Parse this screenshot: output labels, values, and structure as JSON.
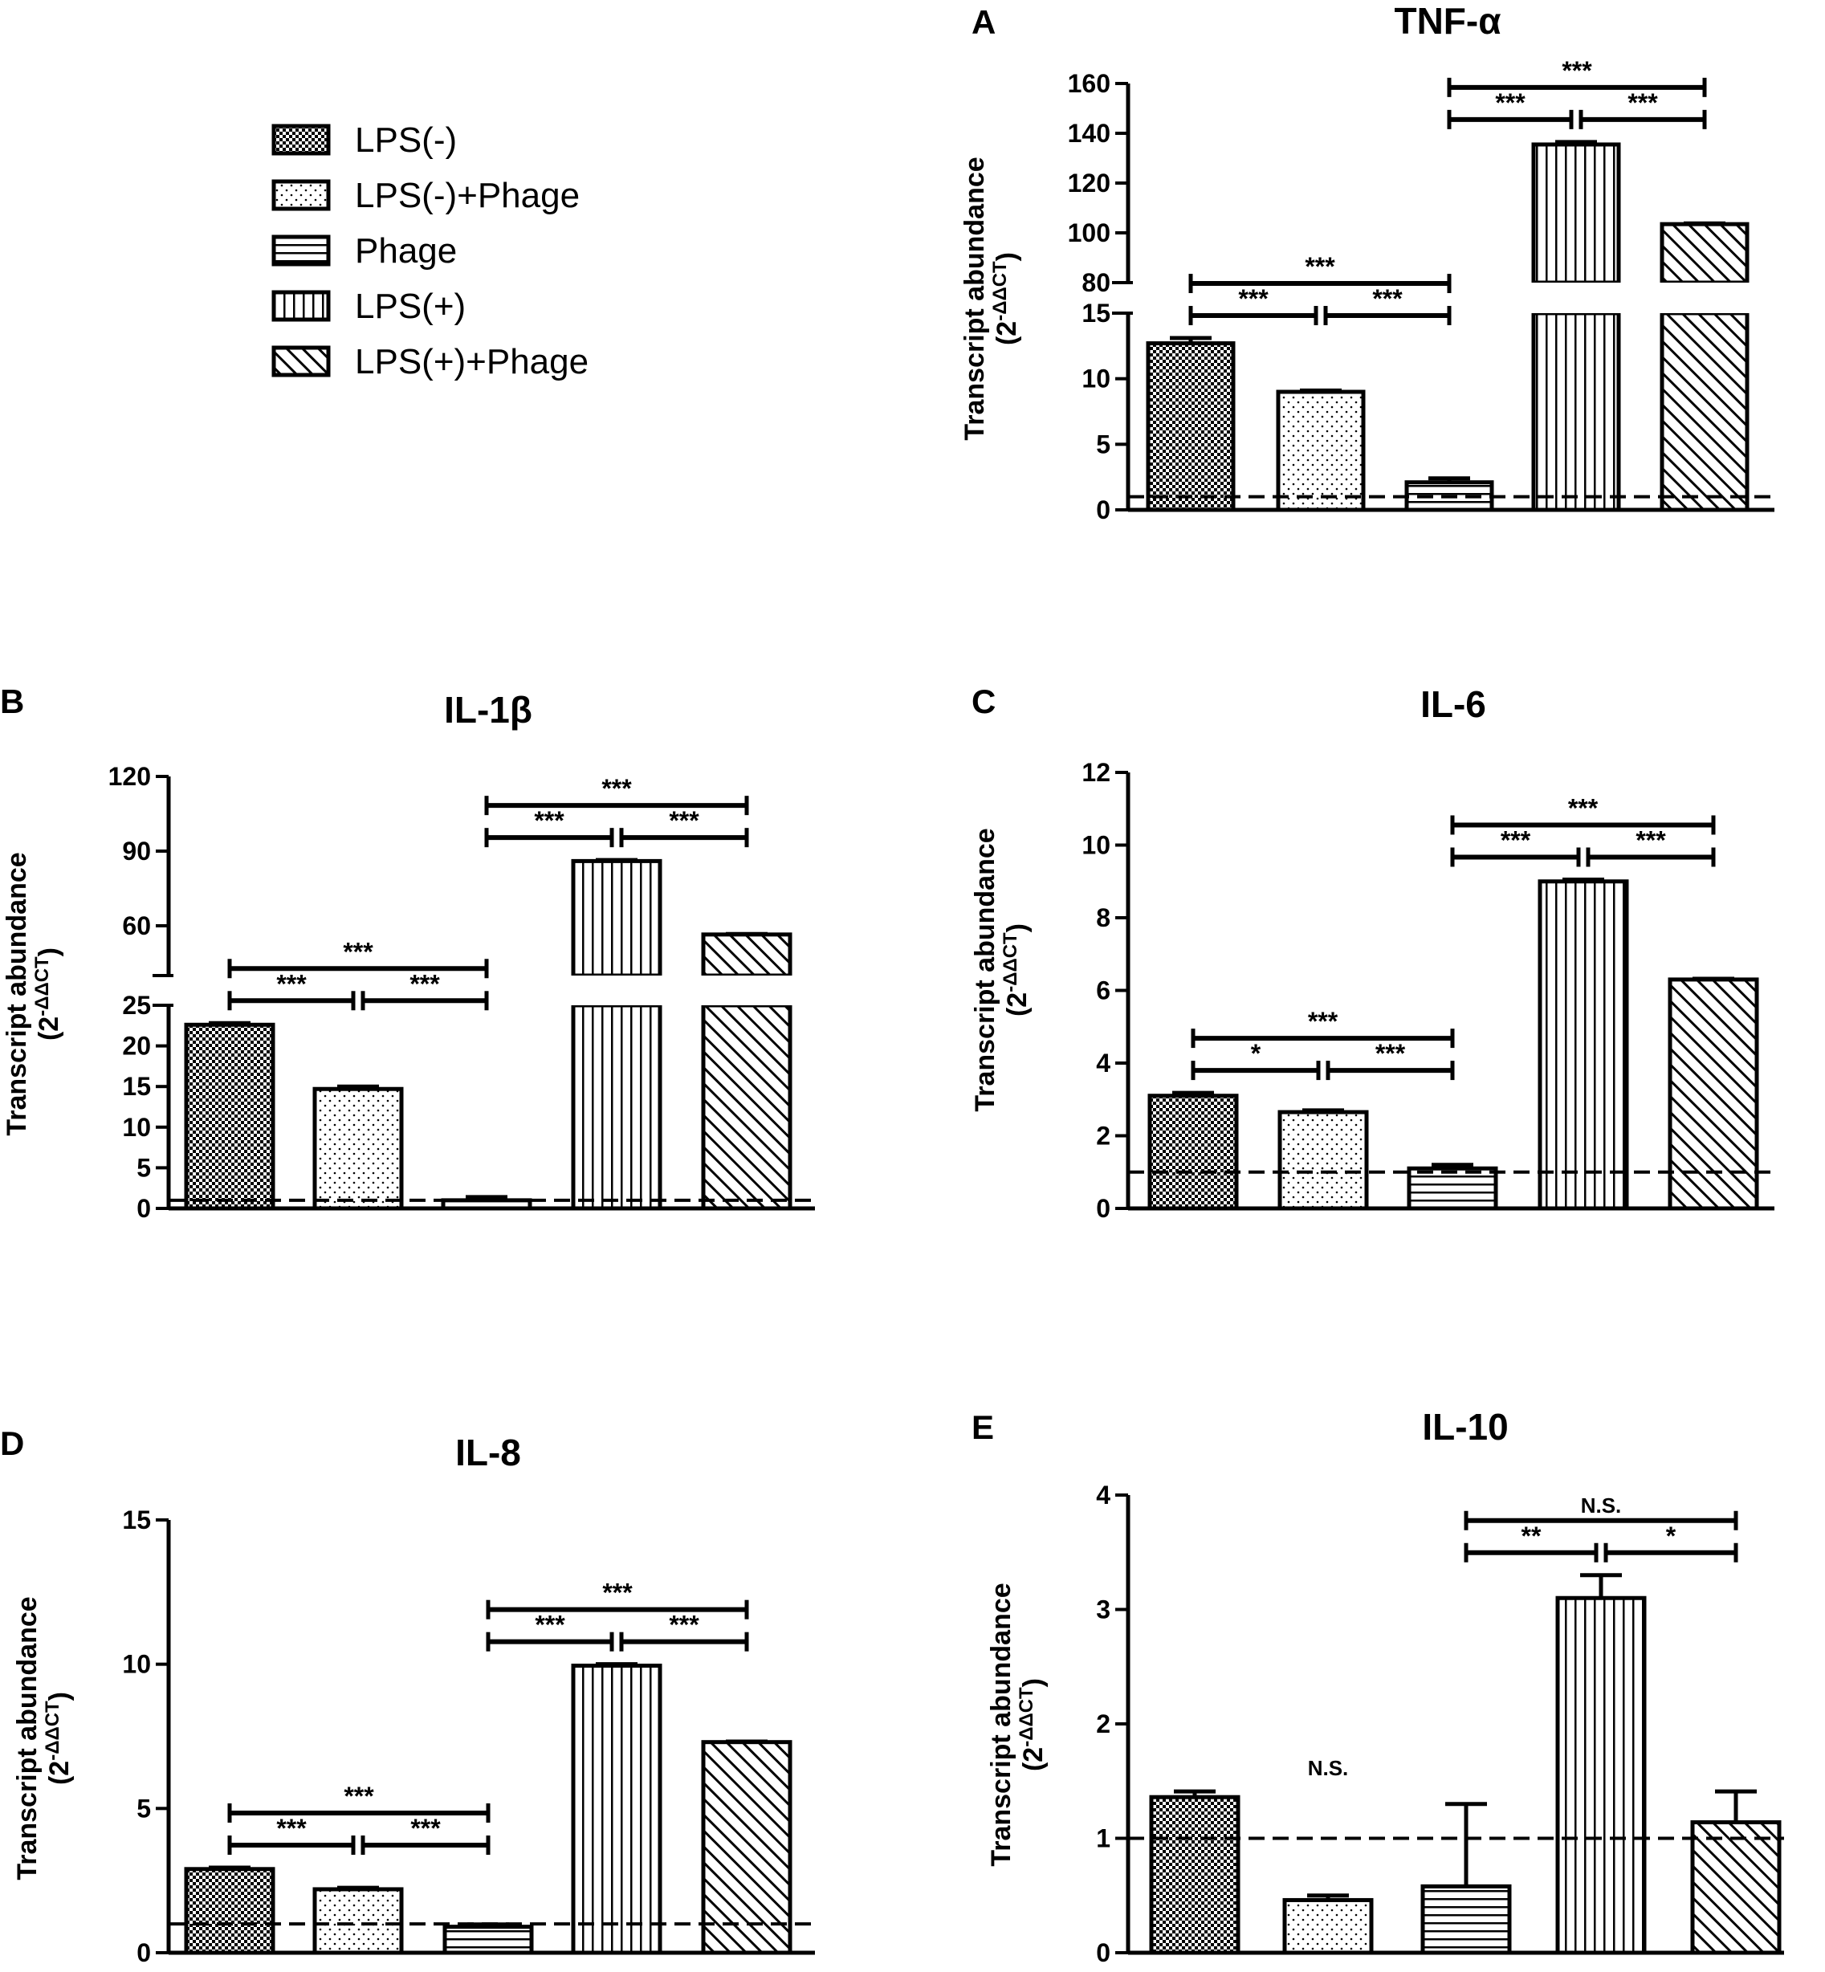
{
  "legend": [
    {
      "label": "LPS(-)",
      "pattern": "pat-check"
    },
    {
      "label": "LPS(-)+Phage",
      "pattern": "pat-dots"
    },
    {
      "label": "Phage",
      "pattern": "pat-hlines"
    },
    {
      "label": "LPS(+)",
      "pattern": "pat-vlines"
    },
    {
      "label": "LPS(+)+Phage",
      "pattern": "pat-diag"
    }
  ],
  "y_axis_label": "Transcript abundance",
  "y_axis_unit_main": "(2",
  "y_axis_unit_sup": "-ΔΔCT",
  "y_axis_unit_end": ")",
  "chart_data": [
    {
      "panel": "A",
      "title": "TNF-α",
      "type": "bar",
      "categories": [
        "LPS(-)",
        "LPS(-)+Phage",
        "Phage",
        "LPS(+)",
        "LPS(+)+Phage"
      ],
      "values": [
        12.7,
        9.0,
        2.1,
        135.5,
        103.5
      ],
      "errors": [
        0.4,
        0.1,
        0.3,
        1.0,
        0.3
      ],
      "baseline": 1,
      "axis_break": {
        "lower": [
          0,
          15
        ],
        "upper": [
          80,
          160
        ]
      },
      "ticks": [
        {
          "v": 0,
          "t": "0"
        },
        {
          "v": 5,
          "t": "5"
        },
        {
          "v": 10,
          "t": "10"
        },
        {
          "v": 15,
          "t": "15"
        },
        {
          "v": 80,
          "t": "80"
        },
        {
          "v": 100,
          "t": "100"
        },
        {
          "v": 120,
          "t": "120"
        },
        {
          "v": 140,
          "t": "140"
        },
        {
          "v": 160,
          "t": "160"
        }
      ],
      "significance": [
        {
          "from": 0,
          "to": 1,
          "level": 1,
          "label": "***"
        },
        {
          "from": 1,
          "to": 2,
          "level": 1,
          "label": "***"
        },
        {
          "from": 0,
          "to": 2,
          "level": 2,
          "label": "***"
        },
        {
          "from": 3,
          "to": 4,
          "level": 1,
          "label": "***"
        },
        {
          "from": 2,
          "to": 3,
          "level": 1,
          "label": "***"
        },
        {
          "from": 2,
          "to": 4,
          "level": 2,
          "label": "***"
        }
      ]
    },
    {
      "panel": "B",
      "title": "IL-1β",
      "type": "bar",
      "categories": [
        "LPS(-)",
        "LPS(-)+Phage",
        "Phage",
        "LPS(+)",
        "LPS(+)+Phage"
      ],
      "values": [
        22.6,
        14.7,
        1.0,
        86.0,
        56.5
      ],
      "errors": [
        0.2,
        0.3,
        0.4,
        0.4,
        0.2
      ],
      "baseline": 1,
      "axis_break": {
        "lower": [
          0,
          25
        ],
        "upper": [
          40,
          120
        ]
      },
      "ticks": [
        {
          "v": 0,
          "t": "0"
        },
        {
          "v": 5,
          "t": "5"
        },
        {
          "v": 10,
          "t": "10"
        },
        {
          "v": 15,
          "t": "15"
        },
        {
          "v": 20,
          "t": "20"
        },
        {
          "v": 25,
          "t": "25"
        },
        {
          "v": 60,
          "t": "60"
        },
        {
          "v": 90,
          "t": "90"
        },
        {
          "v": 120,
          "t": "120"
        }
      ],
      "significance": [
        {
          "from": 0,
          "to": 1,
          "level": 1,
          "label": "***"
        },
        {
          "from": 1,
          "to": 2,
          "level": 1,
          "label": "***"
        },
        {
          "from": 0,
          "to": 2,
          "level": 2,
          "label": "***"
        },
        {
          "from": 2,
          "to": 3,
          "level": 1,
          "label": "***"
        },
        {
          "from": 3,
          "to": 4,
          "level": 1,
          "label": "***"
        },
        {
          "from": 2,
          "to": 4,
          "level": 2,
          "label": "***"
        }
      ]
    },
    {
      "panel": "C",
      "title": "IL-6",
      "type": "bar",
      "categories": [
        "LPS(-)",
        "LPS(-)+Phage",
        "Phage",
        "LPS(+)",
        "LPS(+)+Phage"
      ],
      "values": [
        3.1,
        2.65,
        1.1,
        9.0,
        6.3
      ],
      "errors": [
        0.08,
        0.05,
        0.1,
        0.05,
        0.02
      ],
      "baseline": 1,
      "ylim": [
        0,
        12
      ],
      "ticks": [
        {
          "v": 0,
          "t": "0"
        },
        {
          "v": 2,
          "t": "2"
        },
        {
          "v": 4,
          "t": "4"
        },
        {
          "v": 6,
          "t": "6"
        },
        {
          "v": 8,
          "t": "8"
        },
        {
          "v": 10,
          "t": "10"
        },
        {
          "v": 12,
          "t": "12"
        }
      ],
      "significance": [
        {
          "from": 0,
          "to": 1,
          "level": 1,
          "label": "*"
        },
        {
          "from": 1,
          "to": 2,
          "level": 1,
          "label": "***"
        },
        {
          "from": 0,
          "to": 2,
          "level": 2,
          "label": "***"
        },
        {
          "from": 2,
          "to": 3,
          "level": 1,
          "label": "***"
        },
        {
          "from": 3,
          "to": 4,
          "level": 1,
          "label": "***"
        },
        {
          "from": 2,
          "to": 4,
          "level": 2,
          "label": "***"
        }
      ]
    },
    {
      "panel": "D",
      "title": "IL-8",
      "type": "bar",
      "categories": [
        "LPS(-)",
        "LPS(-)+Phage",
        "Phage",
        "LPS(+)",
        "LPS(+)+Phage"
      ],
      "values": [
        2.9,
        2.2,
        0.9,
        9.95,
        7.3
      ],
      "errors": [
        0.05,
        0.05,
        0.08,
        0.05,
        0.02
      ],
      "baseline": 1,
      "ylim": [
        0,
        15
      ],
      "ticks": [
        {
          "v": 0,
          "t": "0"
        },
        {
          "v": 5,
          "t": "5"
        },
        {
          "v": 10,
          "t": "10"
        },
        {
          "v": 15,
          "t": "15"
        }
      ],
      "significance": [
        {
          "from": 0,
          "to": 1,
          "level": 1,
          "label": "***"
        },
        {
          "from": 1,
          "to": 2,
          "level": 1,
          "label": "***"
        },
        {
          "from": 0,
          "to": 2,
          "level": 2,
          "label": "***"
        },
        {
          "from": 2,
          "to": 3,
          "level": 1,
          "label": "***"
        },
        {
          "from": 3,
          "to": 4,
          "level": 1,
          "label": "***"
        },
        {
          "from": 2,
          "to": 4,
          "level": 2,
          "label": "***"
        }
      ]
    },
    {
      "panel": "E",
      "title": "IL-10",
      "type": "bar",
      "categories": [
        "LPS(-)",
        "LPS(-)+Phage",
        "Phage",
        "LPS(+)",
        "LPS(+)+Phage"
      ],
      "values": [
        1.36,
        0.46,
        0.58,
        3.1,
        1.14
      ],
      "errors": [
        0.05,
        0.04,
        0.72,
        0.2,
        0.27
      ],
      "baseline": 1,
      "ylim": [
        0,
        4
      ],
      "ticks": [
        {
          "v": 0,
          "t": "0"
        },
        {
          "v": 1,
          "t": "1"
        },
        {
          "v": 2,
          "t": "2"
        },
        {
          "v": 3,
          "t": "3"
        },
        {
          "v": 4,
          "t": "4"
        }
      ],
      "significance": [
        {
          "from": 3,
          "to": 4,
          "level": 1,
          "label": "*"
        },
        {
          "from": 2,
          "to": 3,
          "level": 1,
          "label": "**"
        },
        {
          "from": 2,
          "to": 4,
          "level": 2,
          "label": "N.S."
        }
      ],
      "annotations": [
        {
          "bar": 1,
          "label": "N.S."
        }
      ]
    }
  ]
}
